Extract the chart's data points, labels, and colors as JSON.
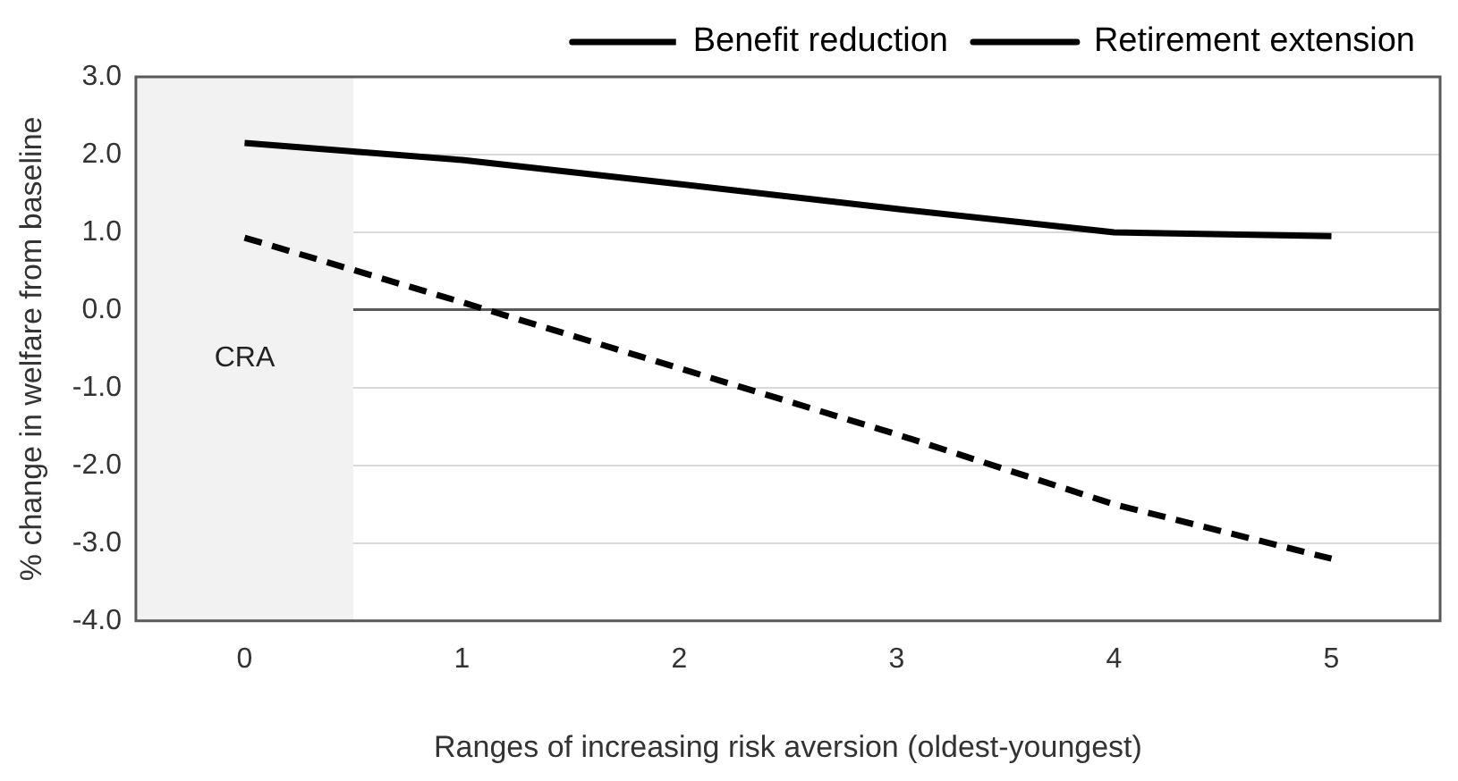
{
  "chart_data": {
    "type": "line",
    "xlabel": "Ranges of increasing risk aversion (oldest-youngest)",
    "ylabel": "% change in welfare from baseline",
    "x": [
      0,
      1,
      2,
      3,
      4,
      5
    ],
    "xlim": [
      -0.5,
      5.5
    ],
    "xticks": [
      0,
      1,
      2,
      3,
      4,
      5
    ],
    "ylim": [
      -4,
      3
    ],
    "yticks": [
      {
        "value": -4,
        "label": "-4.0"
      },
      {
        "value": -3,
        "label": "-3.0"
      },
      {
        "value": -2,
        "label": "-2.0"
      },
      {
        "value": -1,
        "label": "-1.0"
      },
      {
        "value": 0,
        "label": "0.0"
      },
      {
        "value": 1,
        "label": "1.0"
      },
      {
        "value": 2,
        "label": "2.0"
      },
      {
        "value": 3,
        "label": "3.0"
      }
    ],
    "series": [
      {
        "name": "Benefit reduction",
        "color": "#000000",
        "line_style": "dashed",
        "values": [
          0.93,
          0.1,
          -0.75,
          -1.6,
          -2.5,
          -3.2
        ]
      },
      {
        "name": "Retirement extension",
        "color": "#000000",
        "line_style": "solid",
        "values": [
          2.15,
          1.93,
          1.62,
          1.3,
          1.0,
          0.95
        ]
      }
    ],
    "bands": [
      {
        "axis": "x",
        "from": -0.5,
        "to": 0.5,
        "label": "CRA",
        "color": "#f2f2f2"
      }
    ],
    "grid": "y",
    "legend": "top right",
    "marker": "none"
  }
}
